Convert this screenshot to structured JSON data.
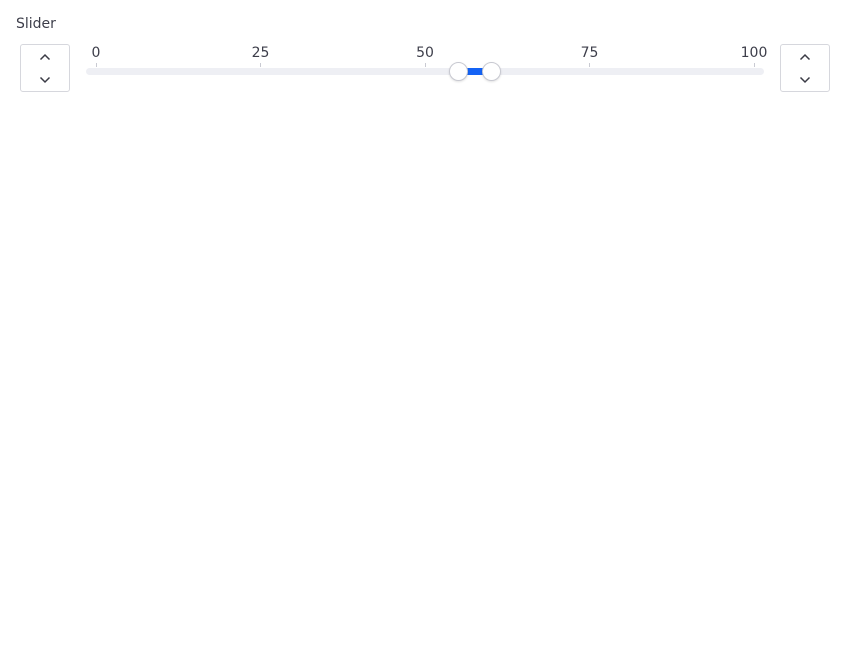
{
  "label": "Slider",
  "slider": {
    "min": 0,
    "max": 100,
    "low": 55,
    "high": 60,
    "ticks": [
      "0",
      "25",
      "50",
      "75",
      "100"
    ]
  },
  "icons": {
    "increment": "chevron-up-icon",
    "decrement": "chevron-down-icon"
  },
  "colors": {
    "accent": "#1463f5",
    "track": "#eeeff4"
  }
}
